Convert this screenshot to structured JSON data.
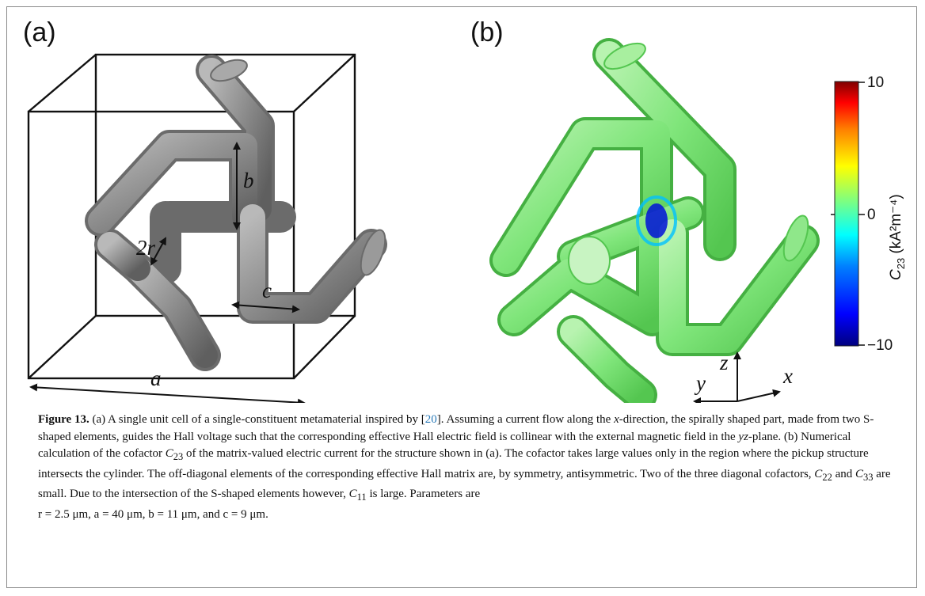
{
  "panels": {
    "a": {
      "label": "(a)",
      "dim_b": "b",
      "dim_2r": "2r",
      "dim_c": "c",
      "dim_a": "a"
    },
    "b": {
      "label": "(b)",
      "axes": {
        "z": "z",
        "y": "y",
        "x": "x"
      },
      "colorbar": {
        "max_label": "10",
        "zero_label": "0",
        "min_label": "−10",
        "title_var": "C",
        "title_sub": "23",
        "title_unit": "(kA²m⁻⁴)",
        "colors": [
          "#00007f",
          "#0000ff",
          "#007fff",
          "#00ffff",
          "#7fff7f",
          "#ffff00",
          "#ff7f00",
          "#ff0000",
          "#7f0000"
        ]
      }
    }
  },
  "caption": {
    "label": "Figure 13.",
    "seg1": " (a) A single unit cell of a single-constituent metamaterial inspired by [",
    "ref": "20",
    "seg2": "]. Assuming a current flow along the ",
    "x": "x",
    "seg3": "-direction, the spirally shaped part, made from two S-shaped elements, guides the Hall voltage such that the corresponding effective Hall electric field is collinear with the external magnetic field in the ",
    "yz": "yz",
    "seg4": "-plane. (b) Numerical calculation of the cofactor ",
    "c23": "C",
    "c23sub": "23",
    "seg5": " of the matrix-valued electric current for the structure shown in (a). The cofactor takes large values only in the region where the pickup structure intersects the cylinder. The off-diagonal elements of the corresponding effective Hall matrix are, by symmetry, antisymmetric. Two of the three diagonal cofactors, ",
    "c22": "C",
    "c22sub": "22",
    "and": " and ",
    "c33": "C",
    "c33sub": "33",
    "seg6": " are small. Due to the intersection of the S-shaped elements however, ",
    "c11": "C",
    "c11sub": "11",
    "seg7": " is large. Parameters are",
    "params": "r = 2.5 μm, a = 40 μm, b = 11 μm, and c = 9 μm."
  }
}
